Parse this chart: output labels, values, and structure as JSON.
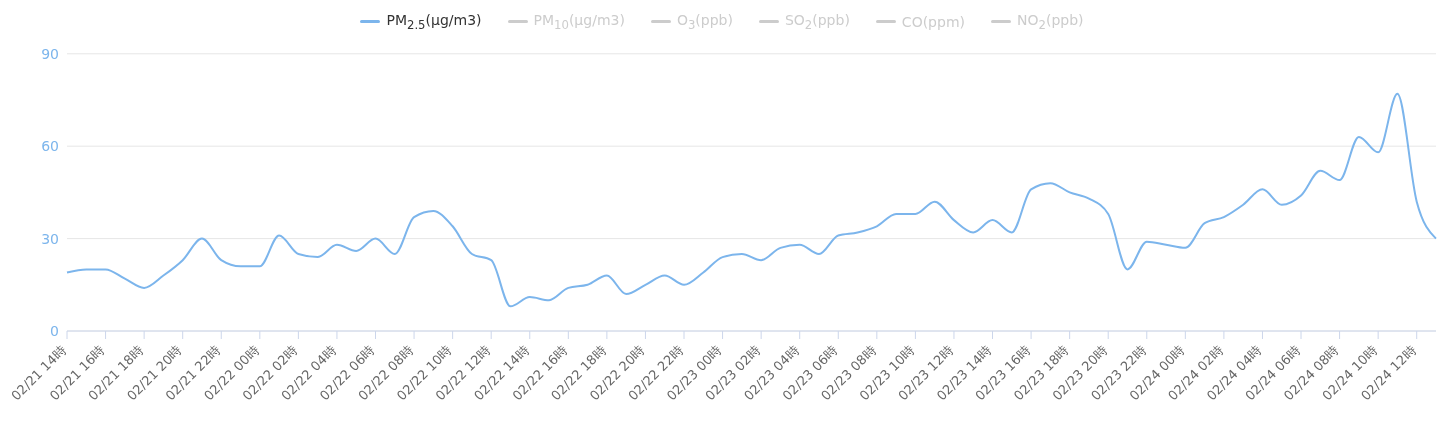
{
  "chart_data": {
    "type": "line",
    "categories": [
      "02/21 14時",
      null,
      "02/21 16時",
      null,
      "02/21 18時",
      null,
      "02/21 20時",
      null,
      "02/21 22時",
      null,
      "02/22 00時",
      null,
      "02/22 02時",
      null,
      "02/22 04時",
      null,
      "02/22 06時",
      null,
      "02/22 08時",
      null,
      "02/22 10時",
      null,
      "02/22 12時",
      null,
      "02/22 14時",
      null,
      "02/22 16時",
      null,
      "02/22 18時",
      null,
      "02/22 20時",
      null,
      "02/22 22時",
      null,
      "02/23 00時",
      null,
      "02/23 02時",
      null,
      "02/23 04時",
      null,
      "02/23 06時",
      null,
      "02/23 08時",
      null,
      "02/23 10時",
      null,
      "02/23 12時",
      null,
      "02/23 14時",
      null,
      "02/23 16時",
      null,
      "02/23 18時",
      null,
      "02/23 20時",
      null,
      "02/23 22時",
      null,
      "02/24 00時",
      null,
      "02/24 02時",
      null,
      "02/24 04時",
      null,
      "02/24 06時",
      null,
      "02/24 08時",
      null,
      "02/24 10時",
      null,
      "02/24 12時",
      null
    ],
    "series": [
      {
        "name": "PM$_{2.5}$(μg/m3)",
        "color": "#7cb5ec",
        "values": [
          19,
          20,
          20,
          17,
          14,
          18,
          23,
          30,
          23,
          21,
          21,
          31,
          25,
          24,
          28,
          26,
          30,
          25,
          37,
          39,
          34,
          25,
          23,
          8,
          11,
          10,
          14,
          15,
          18,
          12,
          15,
          18,
          15,
          19,
          24,
          25,
          23,
          27,
          28,
          25,
          31,
          32,
          34,
          38,
          38,
          42,
          36,
          32,
          36,
          32,
          46,
          48,
          45,
          43,
          38,
          20,
          29,
          28,
          27,
          35,
          37,
          41,
          46,
          41,
          44,
          52,
          49,
          63,
          58,
          77,
          42,
          30
        ]
      },
      {
        "name": "PM$_{10}$(μg/m3)",
        "color": "#cccccc",
        "values": [
          null,
          null,
          null,
          null,
          null,
          null,
          null,
          null,
          null,
          null,
          null,
          null,
          null,
          null,
          null,
          null,
          null,
          null,
          null,
          null,
          null,
          null,
          null,
          null,
          null,
          null,
          null,
          null,
          null,
          null,
          null,
          null,
          null,
          null,
          null,
          null,
          null,
          null,
          null,
          null,
          null,
          null,
          null,
          null,
          null,
          null,
          null,
          null,
          null,
          null,
          null,
          null,
          null,
          null,
          null,
          null,
          null,
          null,
          null,
          null,
          null,
          null,
          null,
          null,
          null,
          null,
          null,
          null,
          null,
          null,
          null,
          null
        ]
      },
      {
        "name": "O$_{3}$(ppb)",
        "color": "#cccccc",
        "values": [
          null,
          null,
          null,
          null,
          null,
          null,
          null,
          null,
          null,
          null,
          null,
          null,
          null,
          null,
          null,
          null,
          null,
          null,
          null,
          null,
          null,
          null,
          null,
          null,
          null,
          null,
          null,
          null,
          null,
          null,
          null,
          null,
          null,
          null,
          null,
          null,
          null,
          null,
          null,
          null,
          null,
          null,
          null,
          null,
          null,
          null,
          null,
          null,
          null,
          null,
          null,
          null,
          null,
          null,
          null,
          null,
          null,
          null,
          null,
          null,
          null,
          null,
          null,
          null,
          null,
          null,
          null,
          null,
          null,
          null,
          null,
          null
        ]
      },
      {
        "name": "SO$_{2}$(ppb)",
        "color": "#cccccc",
        "values": [
          null,
          null,
          null,
          null,
          null,
          null,
          null,
          null,
          null,
          null,
          null,
          null,
          null,
          null,
          null,
          null,
          null,
          null,
          null,
          null,
          null,
          null,
          null,
          null,
          null,
          null,
          null,
          null,
          null,
          null,
          null,
          null,
          null,
          null,
          null,
          null,
          null,
          null,
          null,
          null,
          null,
          null,
          null,
          null,
          null,
          null,
          null,
          null,
          null,
          null,
          null,
          null,
          null,
          null,
          null,
          null,
          null,
          null,
          null,
          null,
          null,
          null,
          null,
          null,
          null,
          null,
          null,
          null,
          null,
          null,
          null,
          null
        ]
      },
      {
        "name": "CO(ppm)",
        "color": "#cccccc",
        "values": [
          null,
          null,
          null,
          null,
          null,
          null,
          null,
          null,
          null,
          null,
          null,
          null,
          null,
          null,
          null,
          null,
          null,
          null,
          null,
          null,
          null,
          null,
          null,
          null,
          null,
          null,
          null,
          null,
          null,
          null,
          null,
          null,
          null,
          null,
          null,
          null,
          null,
          null,
          null,
          null,
          null,
          null,
          null,
          null,
          null,
          null,
          null,
          null,
          null,
          null,
          null,
          null,
          null,
          null,
          null,
          null,
          null,
          null,
          null,
          null,
          null,
          null,
          null,
          null,
          null,
          null,
          null,
          null,
          null,
          null,
          null,
          null
        ]
      },
      {
        "name": "NO$_{2}$(ppb)",
        "color": "#cccccc",
        "values": [
          null,
          null,
          null,
          null,
          null,
          null,
          null,
          null,
          null,
          null,
          null,
          null,
          null,
          null,
          null,
          null,
          null,
          null,
          null,
          null,
          null,
          null,
          null,
          null,
          null,
          null,
          null,
          null,
          null,
          null,
          null,
          null,
          null,
          null,
          null,
          null,
          null,
          null,
          null,
          null,
          null,
          null,
          null,
          null,
          null,
          null,
          null,
          null,
          null,
          null,
          null,
          null,
          null,
          null,
          null,
          null,
          null,
          null,
          null,
          null,
          null,
          null,
          null,
          null,
          null,
          null,
          null,
          null,
          null,
          null,
          null,
          null
        ]
      }
    ],
    "ylim": [
      0,
      90
    ],
    "yticks": [
      0,
      30,
      60,
      90
    ],
    "grid": "y",
    "legend": "top",
    "marker": "none",
    "line_style": "solid"
  }
}
